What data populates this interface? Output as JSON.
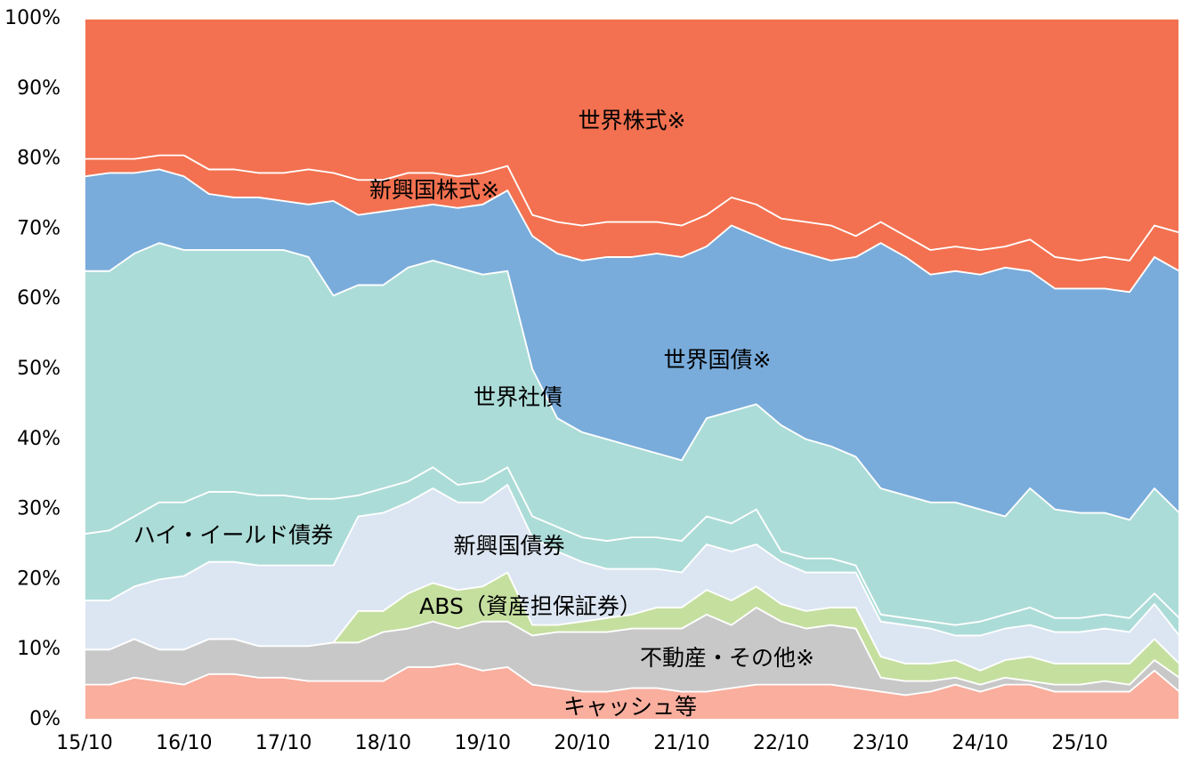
{
  "chart_data": {
    "type": "stacked_area",
    "categories": [
      "15/10",
      null,
      null,
      null,
      "16/10",
      null,
      null,
      null,
      "17/10",
      null,
      null,
      null,
      "18/10",
      null,
      null,
      null,
      "19/10",
      null,
      null,
      null,
      "20/10",
      null,
      null,
      null,
      "21/10",
      null,
      null,
      null,
      "22/10",
      null,
      null,
      null,
      "23/10",
      null,
      null,
      null,
      "24/10",
      null,
      null,
      null,
      "25/10",
      null,
      null,
      null,
      null
    ],
    "ylim": [
      0,
      100
    ],
    "yticks": [
      {
        "value": 0,
        "label": "0%"
      },
      {
        "value": 10,
        "label": "10%"
      },
      {
        "value": 20,
        "label": "20%"
      },
      {
        "value": 30,
        "label": "30%"
      },
      {
        "value": 40,
        "label": "40%"
      },
      {
        "value": 50,
        "label": "50%"
      },
      {
        "value": 60,
        "label": "60%"
      },
      {
        "value": 70,
        "label": "70%"
      },
      {
        "value": 80,
        "label": "80%"
      },
      {
        "value": 90,
        "label": "90%"
      },
      {
        "value": 100,
        "label": "100%"
      }
    ],
    "grid": false,
    "series": [
      {
        "name": "キャッシュ等",
        "color": "#f9ae9e",
        "values": [
          5,
          5,
          6,
          5.5,
          5,
          6.5,
          6.5,
          6,
          6,
          5.5,
          5.5,
          5.5,
          5.5,
          7.5,
          7.5,
          8,
          7,
          7.5,
          5,
          4.5,
          4,
          4,
          4.5,
          4.5,
          4,
          4,
          4.5,
          5,
          5,
          5,
          5,
          4.5,
          4,
          3.5,
          4,
          5,
          4,
          5,
          5,
          4,
          4,
          4,
          4,
          7,
          4
        ]
      },
      {
        "name": "不動産・その他※",
        "color": "#c8c8c8",
        "values": [
          5,
          5,
          5.5,
          4.5,
          5,
          5,
          5,
          4.5,
          4.5,
          5,
          5.5,
          5.5,
          7,
          5.5,
          6.5,
          5,
          7,
          6.5,
          7,
          8,
          8.5,
          8.5,
          8.5,
          8.5,
          9,
          11,
          9,
          11,
          9,
          8,
          8.5,
          8.5,
          2,
          2,
          1.5,
          1,
          1,
          1,
          0.5,
          1,
          1,
          1.5,
          1,
          1.5,
          2
        ]
      },
      {
        "name": "ABS（資産担保証券）",
        "color": "#c5df9f",
        "values": [
          0,
          0,
          0,
          0,
          0,
          0,
          0,
          0,
          0,
          0,
          0,
          4.5,
          3,
          5,
          5.5,
          5.5,
          5,
          7,
          1.5,
          1,
          1.5,
          2,
          2,
          3,
          3,
          3.5,
          3.5,
          3,
          2.5,
          2.5,
          2.5,
          3,
          3,
          2.5,
          2.5,
          2.5,
          2,
          2.5,
          3.5,
          3,
          3,
          2.5,
          3,
          3,
          2
        ]
      },
      {
        "name": "新興国債券",
        "color": "#dce6f2",
        "values": [
          7,
          7,
          7.5,
          10,
          10.5,
          11,
          11,
          11.5,
          11.5,
          11.5,
          11,
          13.5,
          14,
          13,
          13.5,
          12.5,
          12,
          12.5,
          12.5,
          10.5,
          8.5,
          7,
          6.5,
          5.5,
          5,
          6.5,
          7,
          6,
          6,
          5.5,
          5,
          5,
          5,
          5.5,
          5,
          3.5,
          5,
          4.5,
          4.5,
          4.5,
          4.5,
          5,
          4.5,
          5,
          4
        ]
      },
      {
        "name": "ハイ・イールド債券",
        "color": "#acdcd8",
        "values": [
          9.5,
          10,
          10,
          11,
          10.5,
          10,
          10,
          10,
          10,
          9.5,
          9.5,
          3,
          3.5,
          3,
          3,
          2.5,
          3,
          2.5,
          3,
          3.5,
          3.5,
          4,
          4.5,
          4.5,
          4.5,
          4,
          4,
          5,
          1.5,
          2,
          2,
          1,
          1,
          1,
          1,
          1.5,
          2,
          2,
          2.5,
          2,
          2,
          2,
          2,
          1.5,
          2.5
        ]
      },
      {
        "name": "世界社債",
        "color": "#acdcd8",
        "values": [
          37.5,
          37,
          37.5,
          37,
          36,
          34.5,
          34.5,
          35,
          35,
          34.5,
          29,
          30,
          29,
          30.5,
          29.5,
          31,
          29.5,
          28,
          21,
          15.5,
          15,
          14.5,
          13,
          12,
          11.5,
          14,
          16,
          15,
          18,
          17,
          16,
          15.5,
          18,
          17.5,
          17,
          17.5,
          16,
          14,
          17,
          15.5,
          15,
          14.5,
          14,
          15,
          15
        ]
      },
      {
        "name": "世界国債※",
        "color": "#79acdb",
        "values": [
          13.5,
          14,
          11.5,
          10.5,
          10.5,
          8,
          7.5,
          7.5,
          7,
          7.5,
          13.5,
          10,
          10.5,
          8.5,
          8,
          8.5,
          10,
          11.5,
          19,
          23.5,
          24.5,
          26,
          27,
          28.5,
          29,
          24.5,
          26.5,
          24,
          25.5,
          26.5,
          26.5,
          28.5,
          35,
          34,
          32.5,
          33,
          33.5,
          35.5,
          31,
          31.5,
          32,
          32,
          32.5,
          33,
          34.5
        ]
      },
      {
        "name": "新興国株式※",
        "color": "#f37150",
        "values": [
          2.5,
          2,
          2,
          2,
          3,
          3.5,
          4,
          3.5,
          4,
          5,
          4,
          5,
          4.5,
          5,
          4.5,
          4.5,
          4.5,
          3.5,
          3,
          4.5,
          5,
          5,
          5,
          4.5,
          4.5,
          4.5,
          4,
          4.5,
          4,
          4.5,
          5,
          3,
          3,
          3,
          3.5,
          3.5,
          3.5,
          3,
          4.5,
          4.5,
          4,
          4.5,
          4.5,
          4.5,
          5.5
        ]
      },
      {
        "name": "世界株式※",
        "color": "#f37150",
        "values": [
          20,
          20,
          20,
          19.5,
          19.5,
          21.5,
          21.5,
          22,
          22,
          21.5,
          22,
          23,
          23,
          22,
          22,
          22.5,
          22,
          21,
          28,
          29,
          29.5,
          29,
          29,
          29,
          29.5,
          28,
          25.5,
          26.5,
          28.5,
          29,
          29.5,
          31,
          29,
          31,
          33,
          32.5,
          33,
          32.5,
          31.5,
          34,
          34.5,
          34,
          34.5,
          29.5,
          30.5
        ]
      }
    ]
  }
}
